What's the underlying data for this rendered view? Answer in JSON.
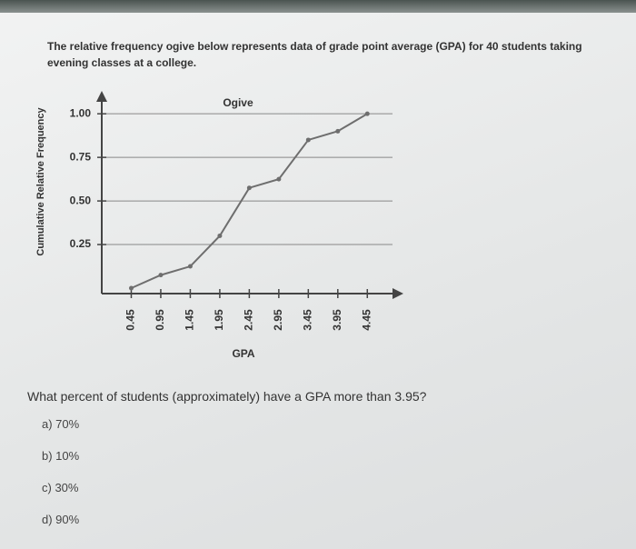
{
  "intro": "The relative frequency ogive below represents data of grade point average (GPA) for 40 students taking evening classes at a college.",
  "chart_data": {
    "type": "line",
    "title": "Ogive",
    "x_label": "GPA",
    "y_label": "Cumulative Relative Frequency",
    "x": [
      0.45,
      0.95,
      1.45,
      1.95,
      2.45,
      2.95,
      3.45,
      3.95,
      4.45
    ],
    "series": [
      {
        "name": "Ogive",
        "color": "#6e6e6e",
        "values": [
          0,
          0.075,
          0.125,
          0.3,
          0.575,
          0.625,
          0.85,
          0.9,
          1.0
        ]
      }
    ],
    "xlim": [
      -0.05,
      5.0
    ],
    "ylim": [
      0,
      1.1
    ],
    "xticks": [
      0.45,
      0.95,
      1.45,
      1.95,
      2.45,
      2.95,
      3.45,
      3.95,
      4.45
    ],
    "yticks": [
      0.25,
      {
        "value": 0.5,
        "label": "0.50"
      },
      0.75,
      {
        "value": 1,
        "label": "1.00"
      }
    ],
    "grid": true
  },
  "question": "What percent of students (approximately) have a GPA more than 3.95?",
  "options": [
    "a) 70%",
    "b) 10%",
    "c) 30%",
    "d) 90%"
  ]
}
